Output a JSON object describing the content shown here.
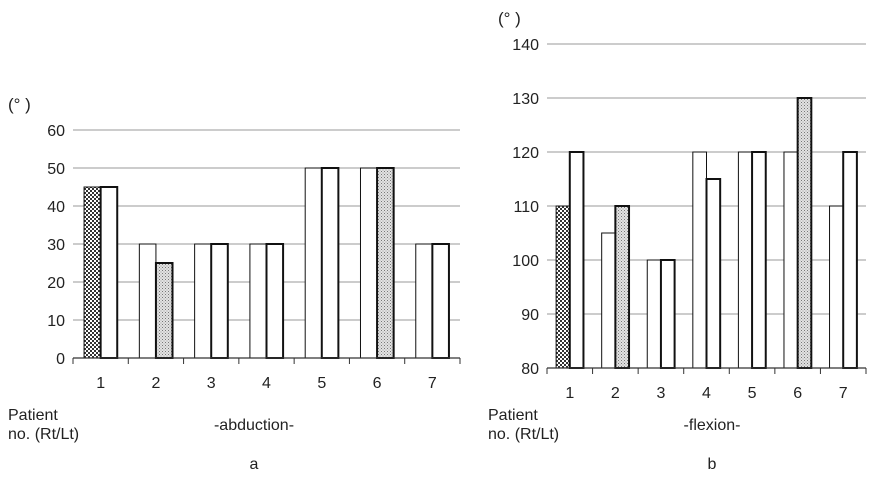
{
  "colors": {
    "grid": "#9a9a9a",
    "axis": "#333333",
    "bar_stroke": "#111111",
    "bar_fill_plain": "#ffffff",
    "bar_fill_dotted": "#cfcfcf",
    "bar_fill_checkered": "#555555"
  },
  "chart_data": [
    {
      "type": "bar",
      "panel_label": "a",
      "title": "-abduction-",
      "xlabel": "Patient\nno. (Rt/Lt)",
      "ylabel": "(°  )",
      "ylim": [
        0,
        60
      ],
      "y_ticks": [
        0,
        10,
        20,
        30,
        40,
        50,
        60
      ],
      "grid": true,
      "categories": [
        "1",
        "2",
        "3",
        "4",
        "5",
        "6",
        "7"
      ],
      "series": [
        {
          "values": [
            45,
            30,
            30,
            30,
            50,
            50,
            30
          ],
          "patterns": [
            "checkered",
            "plain",
            "plain",
            "plain",
            "plain",
            "plain",
            "plain"
          ]
        },
        {
          "values": [
            45,
            25,
            30,
            30,
            50,
            50,
            30
          ],
          "patterns": [
            "plain",
            "dotted",
            "plain",
            "plain",
            "plain",
            "dotted",
            "plain"
          ]
        }
      ]
    },
    {
      "type": "bar",
      "panel_label": "b",
      "title": "-flexion-",
      "xlabel": "Patient\nno. (Rt/Lt)",
      "ylabel": "(°  )",
      "ylim": [
        80,
        140
      ],
      "y_ticks": [
        80,
        90,
        100,
        110,
        120,
        130,
        140
      ],
      "grid": true,
      "categories": [
        "1",
        "2",
        "3",
        "4",
        "5",
        "6",
        "7"
      ],
      "series": [
        {
          "values": [
            110,
            105,
            100,
            120,
            120,
            120,
            110
          ],
          "patterns": [
            "checkered",
            "plain",
            "plain",
            "plain",
            "plain",
            "plain",
            "plain"
          ]
        },
        {
          "values": [
            120,
            110,
            100,
            115,
            120,
            130,
            120
          ],
          "patterns": [
            "plain",
            "dotted",
            "plain",
            "plain",
            "plain",
            "dotted",
            "plain"
          ]
        }
      ]
    }
  ]
}
